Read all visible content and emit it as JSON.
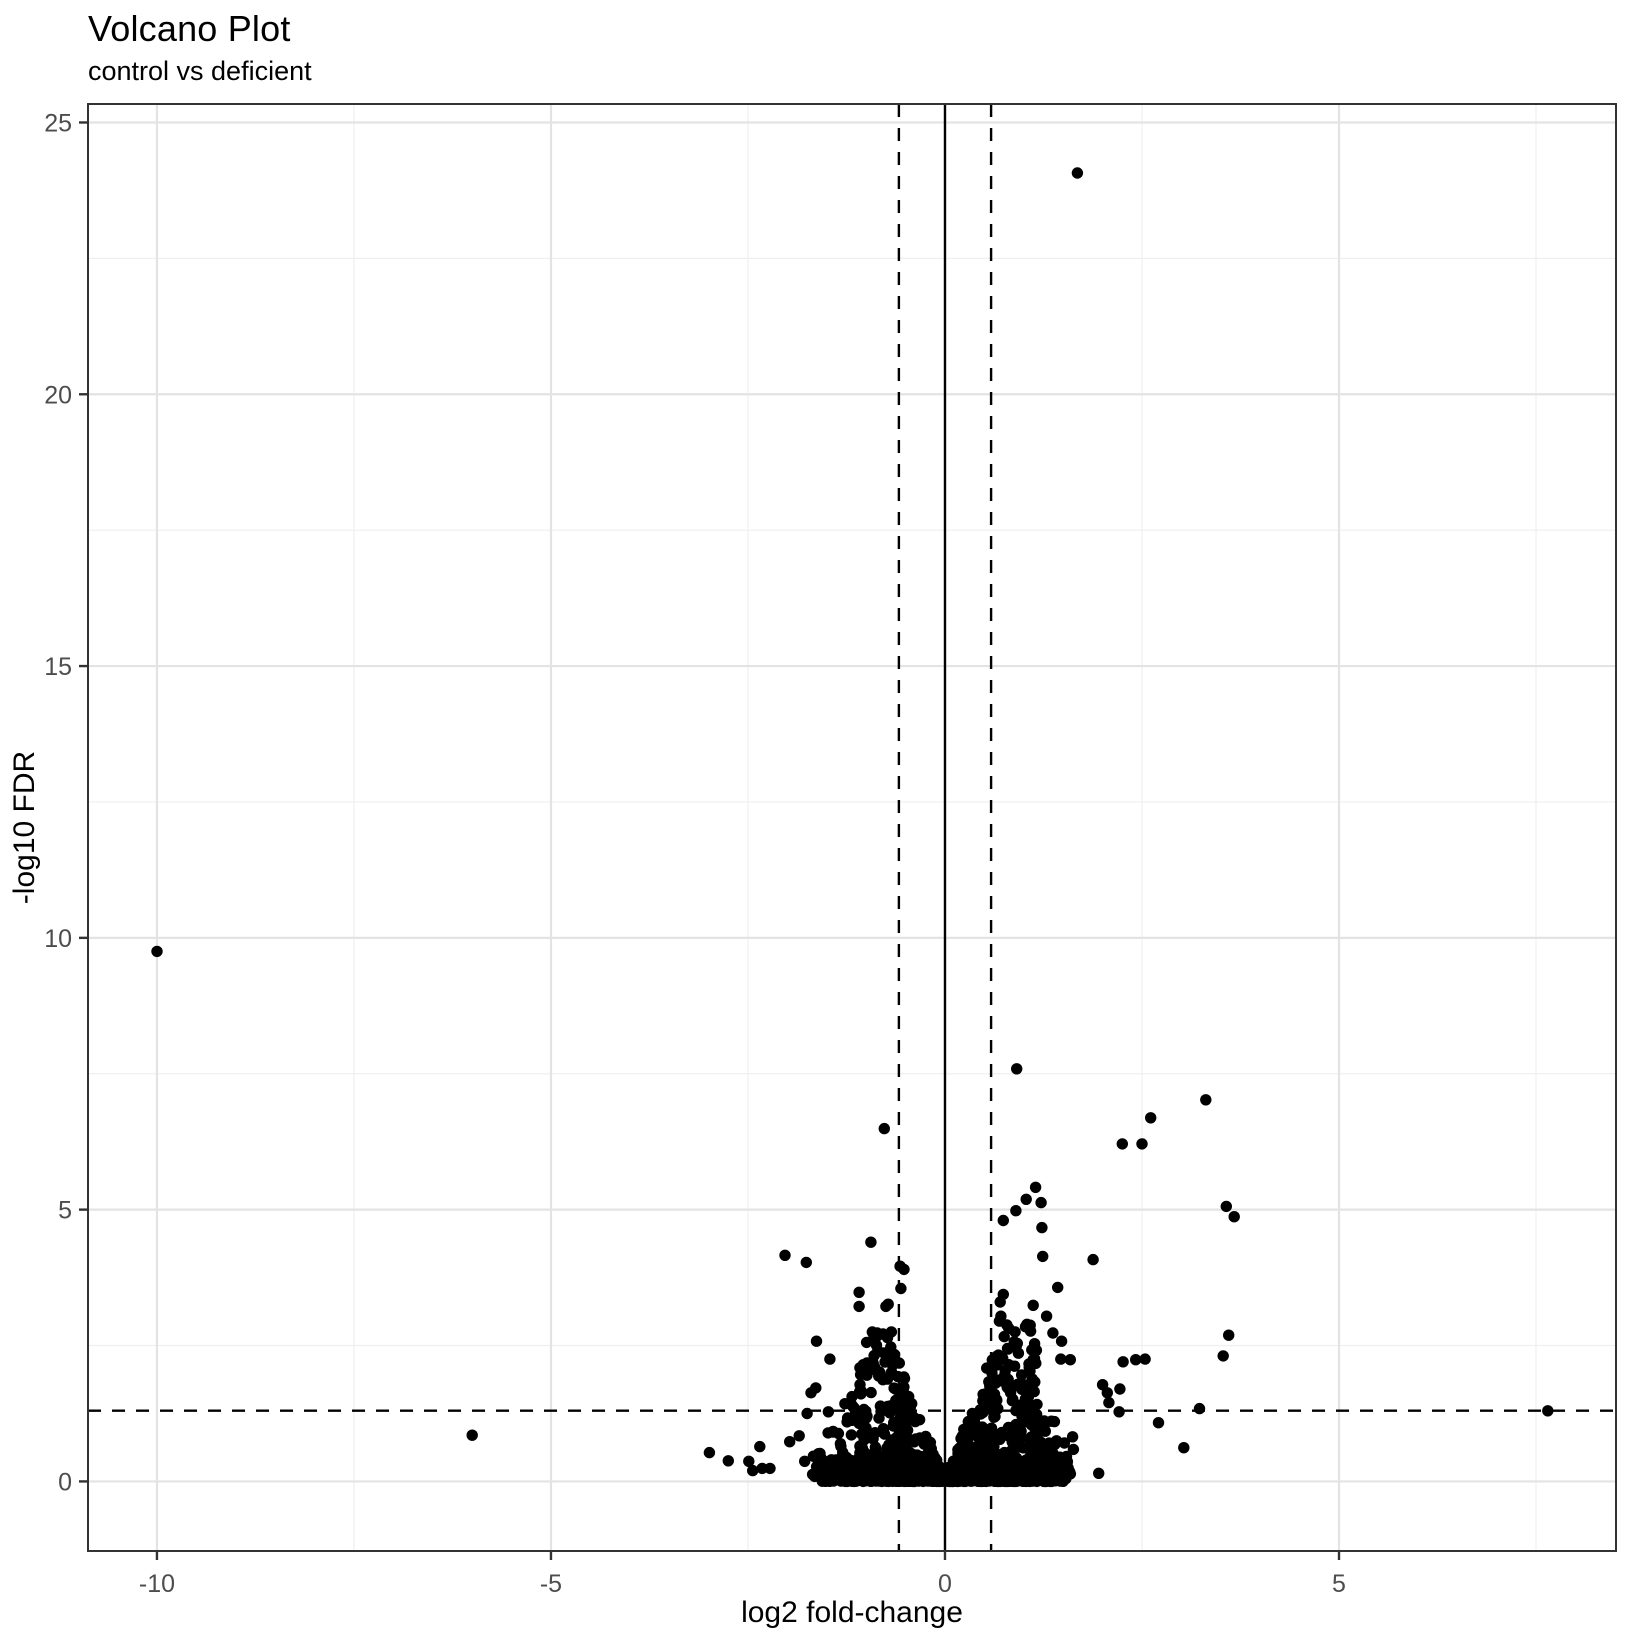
{
  "title": "Volcano Plot",
  "subtitle": "control vs deficient",
  "chart_data": {
    "type": "scatter",
    "title": "Volcano Plot",
    "subtitle": "control vs deficient",
    "xlabel": "log2 fold-change",
    "ylabel": "-log10 FDR",
    "xlim": [
      -10.875,
      8.515
    ],
    "ylim": [
      -1.28,
      25.34
    ],
    "x_ticks": [
      -10,
      -5,
      0,
      5
    ],
    "y_ticks": [
      0,
      5,
      10,
      15,
      20,
      25
    ],
    "x_minor_ticks": [
      -7.5,
      -2.5,
      2.5,
      7.5
    ],
    "y_minor_ticks": [
      2.5,
      7.5,
      12.5,
      17.5,
      22.5
    ],
    "grid": true,
    "legend": "none",
    "point_color": "#000000",
    "point_radius_px": 5.7,
    "grid_major_color": "#e3e3e3",
    "grid_minor_color": "#efefef",
    "panel_border_color": "#333333",
    "tick_label_color": "#4d4d4d",
    "reference_lines": {
      "vertical_solid_x": 0,
      "vertical_dashed_x": [
        -0.585,
        0.585
      ],
      "horizontal_dashed_y": 1.301,
      "style_note": "dashed = significance thresholds, solid = zero fold-change"
    },
    "labeled_points": [
      [
        1.68,
        24.07
      ],
      [
        -10.0,
        9.75
      ],
      [
        0.91,
        7.59
      ],
      [
        3.31,
        7.02
      ],
      [
        2.61,
        6.69
      ],
      [
        -0.77,
        6.49
      ],
      [
        2.25,
        6.21
      ],
      [
        2.5,
        6.21
      ],
      [
        1.15,
        5.41
      ],
      [
        1.03,
        5.19
      ],
      [
        1.22,
        5.13
      ],
      [
        3.57,
        5.06
      ],
      [
        0.9,
        4.98
      ],
      [
        3.67,
        4.87
      ],
      [
        0.74,
        4.8
      ],
      [
        1.23,
        4.67
      ],
      [
        -0.94,
        4.4
      ],
      [
        -2.03,
        4.16
      ],
      [
        1.24,
        4.14
      ],
      [
        1.88,
        4.08
      ],
      [
        -1.76,
        4.03
      ],
      [
        -0.57,
        3.96
      ],
      [
        -0.52,
        3.9
      ],
      [
        1.43,
        3.57
      ],
      [
        -0.56,
        3.55
      ],
      [
        -1.09,
        3.48
      ],
      [
        0.74,
        3.44
      ],
      [
        0.7,
        3.3
      ],
      [
        -1.09,
        3.22
      ],
      [
        -0.75,
        3.22
      ],
      [
        -0.72,
        3.26
      ],
      [
        1.12,
        3.24
      ],
      [
        1.29,
        3.04
      ],
      [
        0.71,
        3.04
      ],
      [
        0.69,
        2.95
      ],
      [
        0.89,
        2.75
      ],
      [
        1.37,
        2.73
      ],
      [
        -0.86,
        2.73
      ],
      [
        -0.68,
        2.75
      ],
      [
        3.6,
        2.69
      ],
      [
        -1.63,
        2.58
      ],
      [
        1.48,
        2.58
      ],
      [
        3.53,
        2.31
      ],
      [
        1.47,
        2.25
      ],
      [
        1.59,
        2.24
      ],
      [
        2.26,
        2.2
      ],
      [
        2.42,
        2.24
      ],
      [
        2.54,
        2.25
      ],
      [
        1.12,
        2.24
      ],
      [
        -1.46,
        2.25
      ],
      [
        -1.08,
        2.09
      ],
      [
        2.0,
        1.78
      ],
      [
        -1.64,
        1.72
      ],
      [
        2.22,
        1.7
      ],
      [
        -1.7,
        1.63
      ],
      [
        2.06,
        1.63
      ],
      [
        -1.18,
        1.56
      ],
      [
        2.08,
        1.45
      ],
      [
        -1.27,
        1.43
      ],
      [
        3.23,
        1.34
      ],
      [
        7.65,
        1.3
      ],
      [
        -1.48,
        1.28
      ],
      [
        2.21,
        1.28
      ],
      [
        -1.75,
        1.25
      ],
      [
        2.71,
        1.08
      ],
      [
        -1.42,
        0.92
      ],
      [
        -1.85,
        0.84
      ],
      [
        -6.0,
        0.85
      ],
      [
        1.62,
        0.82
      ],
      [
        -1.97,
        0.73
      ],
      [
        -2.35,
        0.64
      ],
      [
        3.03,
        0.62
      ],
      [
        1.63,
        0.59
      ],
      [
        -2.99,
        0.53
      ],
      [
        -2.75,
        0.38
      ],
      [
        -2.49,
        0.37
      ],
      [
        -1.78,
        0.37
      ],
      [
        -2.44,
        0.2
      ],
      [
        -2.32,
        0.24
      ],
      [
        -2.22,
        0.24
      ],
      [
        1.95,
        0.15
      ],
      [
        1.33,
        0.13
      ],
      [
        -1.68,
        0.13
      ]
    ],
    "dense_cloud": {
      "description": "unlabeled dense mass of gene points near origin; sampled deterministically from these components (x = sign*t, y bounded by envelope min(cap, slope*t + intercept))",
      "seed": 13,
      "x_jitter": 0.05,
      "components": [
        {
          "label": "carpet-left",
          "n": 310,
          "sign": -1,
          "t_min": 0.03,
          "t_max": 1.62,
          "t_pow": 1.35,
          "slope": 3.8,
          "intercept": 0.0,
          "cap": 0.45,
          "y_pow": 1.9
        },
        {
          "label": "carpet-right",
          "n": 330,
          "sign": 1,
          "t_min": 0.03,
          "t_max": 1.55,
          "t_pow": 1.35,
          "slope": 4.0,
          "intercept": 0.0,
          "cap": 0.45,
          "y_pow": 1.9
        },
        {
          "label": "wedge-left",
          "n": 270,
          "sign": -1,
          "t_min": 0.1,
          "t_max": 1.08,
          "t_pow": 1.15,
          "slope": 3.8,
          "intercept": -0.05,
          "cap": 2.82,
          "y_pow": 1.3
        },
        {
          "label": "wedge-right",
          "n": 310,
          "sign": 1,
          "t_min": 0.1,
          "t_max": 1.16,
          "t_pow": 1.15,
          "slope": 4.0,
          "intercept": -0.05,
          "cap": 2.95,
          "y_pow": 1.3
        },
        {
          "label": "fringe-left",
          "n": 55,
          "sign": -1,
          "t_min": 1.0,
          "t_max": 1.66,
          "t_pow": 1.0,
          "slope": -2.1,
          "intercept": 4.0,
          "cap": 1.95,
          "y_pow": 1.4
        },
        {
          "label": "fringe-right",
          "n": 65,
          "sign": 1,
          "t_min": 1.0,
          "t_max": 1.6,
          "t_pow": 1.0,
          "slope": -2.3,
          "intercept": 4.3,
          "cap": 2.1,
          "y_pow": 1.4
        }
      ]
    }
  }
}
